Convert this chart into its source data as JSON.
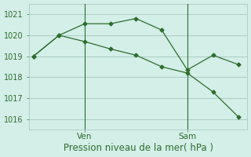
{
  "line1_x": [
    0,
    3,
    6,
    9,
    12,
    15,
    18,
    21,
    24
  ],
  "line1_y": [
    1019.0,
    1020.0,
    1020.55,
    1020.55,
    1020.8,
    1020.25,
    1018.35,
    1019.05,
    1018.6
  ],
  "line2_x": [
    0,
    3,
    6,
    9,
    12,
    15,
    18,
    21,
    24
  ],
  "line2_y": [
    1019.0,
    1020.0,
    1019.7,
    1019.35,
    1019.05,
    1018.5,
    1018.2,
    1017.3,
    1016.1
  ],
  "line_color": "#2d6e2d",
  "bg_color": "#d4eee8",
  "grid_color": "#aaccc5",
  "ylim": [
    1015.5,
    1021.5
  ],
  "yticks": [
    1016,
    1017,
    1018,
    1019,
    1020,
    1021
  ],
  "xlim": [
    -0.5,
    25
  ],
  "xlabel": "Pression niveau de la mer( hPa )",
  "ven_x": 6,
  "sam_x": 18,
  "ven_label": "Ven",
  "sam_label": "Sam",
  "xlabel_fontsize": 8.5,
  "tick_fontsize": 7,
  "xtick_fontsize": 7.5
}
